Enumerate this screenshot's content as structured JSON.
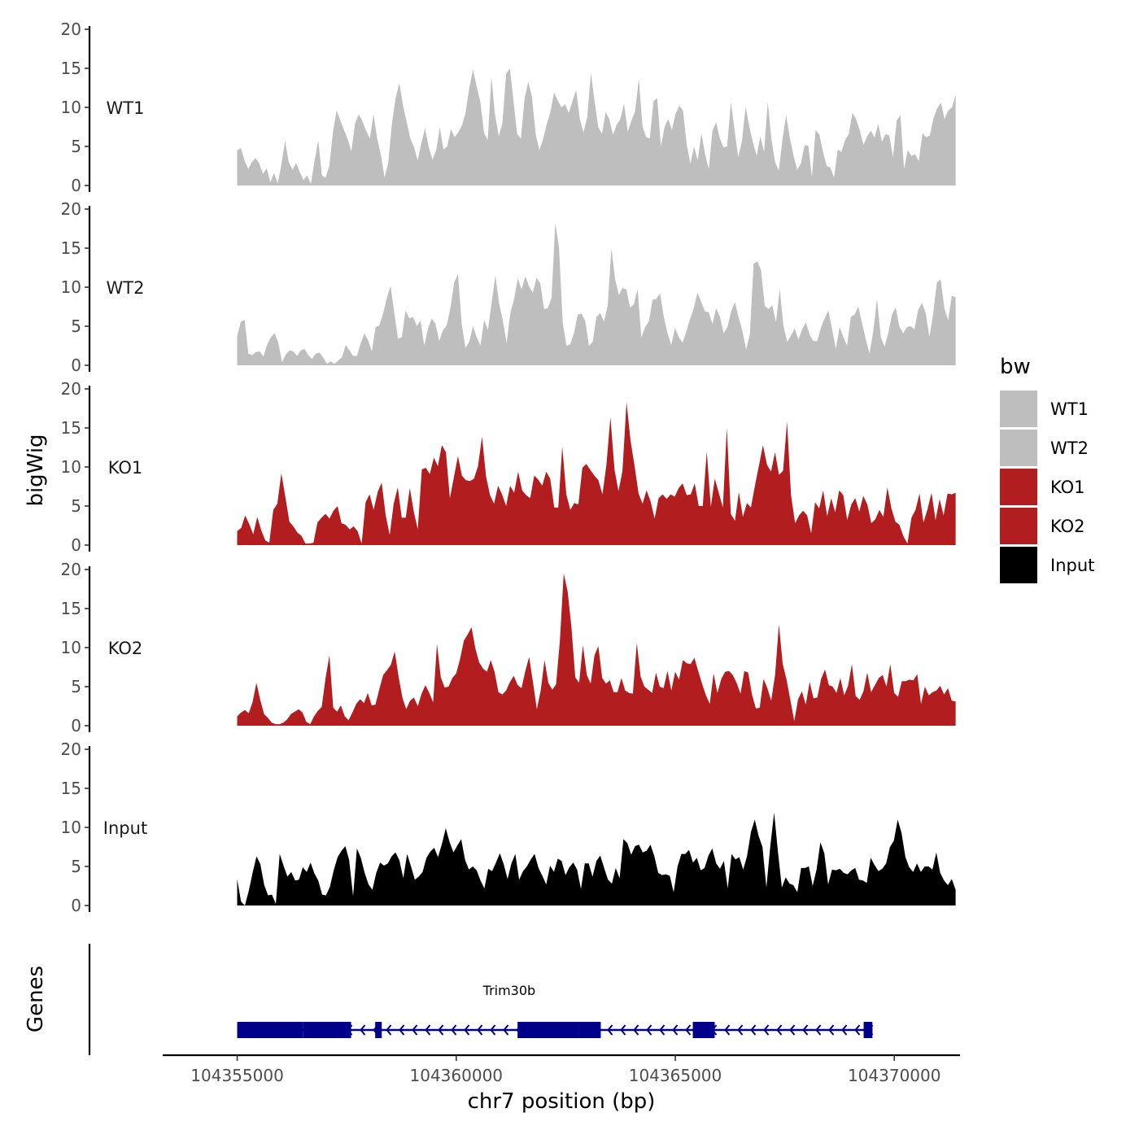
{
  "chart_data": {
    "type": "area",
    "title": "",
    "xlabel": "chr7 position (bp)",
    "ylabel_signal": "bigWig",
    "ylabel_genes": "Genes",
    "xlim": [
      104353300,
      104371500
    ],
    "ylim": [
      0,
      20
    ],
    "x_ticks": [
      104355000,
      104360000,
      104365000,
      104370000
    ],
    "x_tick_labels": [
      "104355000",
      "104360000",
      "104365000",
      "104370000"
    ],
    "y_ticks": [
      0,
      5,
      10,
      15,
      20
    ],
    "y_tick_labels": [
      "0",
      "5",
      "10",
      "15",
      "20"
    ],
    "legend": {
      "title": "bw",
      "position": "right",
      "entries": [
        {
          "label": "WT1",
          "color": "#bebebe"
        },
        {
          "label": "WT2",
          "color": "#bebebe"
        },
        {
          "label": "KO1",
          "color": "#b21d20"
        },
        {
          "label": "KO2",
          "color": "#b21d20"
        },
        {
          "label": "Input",
          "color": "#000000"
        }
      ]
    },
    "tracks": [
      {
        "name": "WT1",
        "color": "#bebebe",
        "x_start": 104355000,
        "x_end": 104371400,
        "values": [
          4.5,
          4.8,
          3.2,
          2.1,
          3.0,
          3.5,
          2.8,
          1.5,
          2.2,
          0.4,
          1.6,
          0.3,
          2.7,
          5.7,
          3.0,
          2.0,
          2.9,
          1.7,
          0.7,
          1.3,
          0.2,
          3.1,
          5.8,
          1.3,
          1.0,
          2.5,
          6.9,
          9.6,
          8.3,
          7.1,
          5.9,
          4.4,
          8.0,
          9.1,
          8.2,
          7.0,
          6.0,
          9.1,
          6.0,
          3.9,
          1.0,
          2.9,
          7.9,
          11.2,
          13.1,
          10.3,
          8.1,
          6.0,
          4.9,
          3.2,
          5.5,
          7.3,
          4.9,
          3.3,
          4.5,
          7.4,
          4.6,
          5.0,
          7.2,
          6.2,
          6.8,
          7.7,
          9.3,
          12.5,
          14.8,
          12.7,
          10.7,
          6.7,
          5.8,
          13.9,
          9.0,
          6.3,
          8.0,
          14.3,
          15.0,
          10.8,
          6.6,
          6.0,
          11.1,
          13.3,
          11.4,
          6.6,
          4.5,
          5.9,
          7.8,
          9.4,
          11.9,
          10.9,
          10.0,
          10.4,
          9.3,
          10.8,
          12.2,
          8.5,
          6.8,
          8.8,
          14.4,
          10.8,
          7.5,
          6.6,
          9.4,
          8.5,
          6.5,
          7.8,
          8.5,
          10.5,
          6.9,
          8.3,
          9.5,
          13.7,
          7.6,
          6.2,
          6.0,
          10.8,
          11.2,
          5.0,
          7.5,
          8.5,
          7.1,
          9.2,
          10.2,
          9.6,
          5.3,
          2.8,
          5.0,
          3.2,
          6.7,
          4.0,
          2.1,
          7.0,
          8.1,
          6.0,
          4.9,
          5.0,
          10.7,
          7.1,
          3.6,
          5.7,
          10.1,
          7.5,
          5.5,
          3.8,
          6.3,
          4.3,
          10.7,
          5.9,
          3.0,
          1.9,
          5.9,
          9.0,
          6.1,
          3.8,
          2.0,
          2.8,
          5.1,
          5.1,
          1.1,
          7.1,
          6.5,
          4.3,
          2.5,
          2.3,
          1.0,
          4.6,
          4.3,
          5.8,
          6.6,
          9.3,
          8.5,
          7.0,
          5.2,
          6.3,
          7.0,
          6.1,
          7.9,
          5.6,
          6.6,
          6.4,
          3.6,
          8.3,
          9.0,
          2.1,
          4.5,
          3.8,
          4.0,
          3.1,
          6.7,
          6.2,
          6.4,
          8.6,
          9.9,
          10.6,
          8.5,
          9.6,
          10.0,
          11.6
        ]
      },
      {
        "name": "WT2",
        "color": "#bebebe",
        "x_start": 104355000,
        "x_end": 104371400,
        "values": [
          3.7,
          5.6,
          5.8,
          1.5,
          1.3,
          1.7,
          1.8,
          1.1,
          2.6,
          3.6,
          4.1,
          2.9,
          0.4,
          1.4,
          1.9,
          1.8,
          1.2,
          1.9,
          2.1,
          1.3,
          0.8,
          1.5,
          1.6,
          1.0,
          0.2,
          0.5,
          0.2,
          0.6,
          1.0,
          2.6,
          1.9,
          1.2,
          1.2,
          2.8,
          4.1,
          3.2,
          1.8,
          4.9,
          5.1,
          6.6,
          8.6,
          10.2,
          6.6,
          3.4,
          3.6,
          7.0,
          6.0,
          6.2,
          5.0,
          5.7,
          2.5,
          4.7,
          6.0,
          5.3,
          3.1,
          4.5,
          5.1,
          7.4,
          10.6,
          11.7,
          5.3,
          2.2,
          3.0,
          5.0,
          3.6,
          2.5,
          5.8,
          4.5,
          8.0,
          11.5,
          7.9,
          5.7,
          2.8,
          6.7,
          8.5,
          11.1,
          9.7,
          11.4,
          10.1,
          9.3,
          11.2,
          10.5,
          7.2,
          7.3,
          8.6,
          18.2,
          15.1,
          5.4,
          2.5,
          2.7,
          4.1,
          6.5,
          6.6,
          5.7,
          2.5,
          3.0,
          6.2,
          6.7,
          5.6,
          7.6,
          15.0,
          11.0,
          9.0,
          9.9,
          9.7,
          7.4,
          7.8,
          9.8,
          3.5,
          4.9,
          5.6,
          8.4,
          8.5,
          9.2,
          6.2,
          4.1,
          2.6,
          4.8,
          3.6,
          2.9,
          4.3,
          5.9,
          7.3,
          9.3,
          8.1,
          6.9,
          6.8,
          5.3,
          7.3,
          6.2,
          4.1,
          4.9,
          6.9,
          8.1,
          6.1,
          4.4,
          2.0,
          4.0,
          13.0,
          13.3,
          12.2,
          7.6,
          7.2,
          7.7,
          5.5,
          9.8,
          5.0,
          3.0,
          3.8,
          4.7,
          3.3,
          4.6,
          5.5,
          3.9,
          3.1,
          3.1,
          4.8,
          6.0,
          7.0,
          4.6,
          2.1,
          4.9,
          3.6,
          2.5,
          6.2,
          6.5,
          7.5,
          5.4,
          3.3,
          1.5,
          4.4,
          8.5,
          3.6,
          2.4,
          4.1,
          6.5,
          7.4,
          4.9,
          4.1,
          4.9,
          5.0,
          4.6,
          7.1,
          8.0,
          6.7,
          3.6,
          6.6,
          10.6,
          11.0,
          7.3,
          5.8,
          8.9,
          8.7
        ]
      },
      {
        "name": "KO1",
        "color": "#b21d20",
        "x_start": 104355000,
        "x_end": 104371400,
        "values": [
          1.8,
          2.2,
          3.8,
          2.7,
          1.4,
          3.6,
          1.9,
          0.6,
          0.3,
          4.5,
          5.3,
          9.2,
          6.2,
          3.0,
          2.4,
          1.6,
          1.2,
          0.2,
          0.2,
          0.3,
          2.9,
          3.5,
          4.0,
          3.4,
          4.4,
          5.0,
          2.8,
          2.6,
          2.0,
          2.4,
          1.8,
          0.2,
          5.5,
          6.5,
          4.5,
          6.8,
          8.0,
          3.8,
          1.3,
          5.3,
          7.4,
          3.5,
          3.5,
          7.3,
          4.3,
          2.0,
          9.7,
          9.9,
          9.1,
          11.2,
          10.1,
          12.8,
          11.9,
          6.0,
          8.7,
          11.4,
          8.9,
          8.3,
          8.2,
          8.5,
          10.1,
          13.9,
          8.8,
          6.4,
          5.3,
          7.6,
          6.5,
          5.0,
          7.6,
          6.7,
          9.4,
          7.0,
          6.4,
          6.0,
          8.9,
          8.4,
          7.6,
          9.4,
          8.5,
          4.8,
          4.8,
          12.6,
          6.5,
          4.5,
          5.4,
          5.2,
          9.9,
          10.4,
          9.6,
          8.9,
          8.3,
          6.5,
          10.3,
          16.4,
          9.7,
          6.9,
          9.5,
          18.3,
          13.4,
          10.2,
          6.6,
          5.3,
          7.0,
          5.6,
          3.4,
          6.0,
          6.5,
          5.9,
          6.5,
          6.2,
          7.3,
          7.9,
          6.4,
          6.5,
          7.9,
          5.0,
          5.0,
          12.0,
          4.9,
          8.5,
          6.7,
          4.8,
          15.0,
          4.0,
          3.1,
          6.8,
          3.6,
          5.4,
          4.8,
          7.6,
          10.2,
          12.8,
          10.3,
          9.4,
          11.9,
          9.0,
          9.5,
          15.8,
          6.4,
          2.8,
          3.8,
          4.4,
          3.8,
          1.5,
          5.5,
          4.7,
          7.0,
          3.7,
          6.0,
          4.2,
          7.0,
          6.4,
          3.2,
          5.2,
          6.0,
          4.3,
          6.3,
          5.2,
          2.8,
          3.3,
          4.5,
          3.6,
          7.4,
          4.7,
          3.0,
          2.6,
          1.1,
          0.2,
          3.5,
          4.5,
          6.6,
          2.9,
          4.6,
          6.7,
          3.2,
          5.9,
          3.8,
          6.6,
          6.5,
          6.7
        ]
      },
      {
        "name": "KO2",
        "color": "#b21d20",
        "x_start": 104355000,
        "x_end": 104371400,
        "values": [
          1.2,
          1.7,
          2.0,
          1.6,
          3.0,
          5.5,
          3.3,
          1.5,
          1.0,
          0.4,
          0.2,
          0.2,
          0.4,
          0.8,
          1.5,
          1.8,
          2.1,
          1.7,
          0.5,
          0.2,
          1.2,
          1.9,
          2.4,
          6.1,
          9.0,
          2.3,
          1.8,
          2.6,
          1.2,
          0.7,
          1.7,
          2.8,
          3.4,
          2.9,
          4.2,
          2.6,
          2.7,
          4.7,
          6.5,
          7.1,
          7.8,
          9.5,
          6.3,
          3.6,
          2.1,
          3.2,
          3.6,
          2.5,
          4.1,
          5.2,
          4.2,
          3.0,
          10.5,
          6.2,
          4.9,
          5.0,
          6.1,
          6.7,
          8.5,
          10.9,
          11.7,
          12.6,
          9.9,
          8.1,
          7.3,
          6.9,
          8.4,
          6.9,
          4.3,
          4.0,
          4.5,
          5.6,
          6.4,
          5.2,
          4.8,
          7.0,
          8.8,
          5.5,
          2.1,
          4.5,
          8.4,
          5.5,
          4.6,
          5.3,
          10.9,
          19.5,
          17.2,
          12.6,
          6.2,
          5.5,
          10.3,
          6.5,
          5.4,
          9.0,
          10.2,
          6.1,
          5.4,
          5.8,
          4.3,
          4.3,
          6.1,
          4.5,
          4.2,
          4.1,
          10.6,
          6.3,
          5.0,
          4.6,
          4.2,
          6.8,
          5.0,
          4.8,
          7.0,
          4.5,
          6.9,
          5.9,
          8.4,
          8.0,
          7.9,
          8.7,
          7.0,
          5.4,
          3.9,
          2.8,
          6.7,
          4.2,
          6.0,
          6.9,
          7.0,
          6.5,
          5.5,
          4.1,
          7.0,
          6.8,
          4.0,
          2.2,
          2.3,
          6.0,
          4.8,
          3.2,
          6.5,
          13.0,
          7.9,
          5.9,
          3.2,
          0.6,
          3.4,
          4.4,
          2.7,
          5.6,
          3.5,
          3.6,
          6.0,
          7.2,
          5.2,
          5.0,
          4.2,
          6.1,
          3.9,
          5.1,
          7.9,
          3.8,
          3.3,
          4.4,
          6.8,
          4.3,
          5.2,
          6.1,
          6.5,
          5.0,
          7.9,
          4.2,
          3.7,
          5.7,
          5.7,
          5.9,
          5.8,
          6.6,
          2.8,
          5.0,
          3.9,
          4.3,
          4.5,
          5.1,
          4.0,
          4.8,
          3.2,
          3.1
        ]
      },
      {
        "name": "Input",
        "color": "#000000",
        "x_start": 104355000,
        "x_end": 104371400,
        "values": [
          3.4,
          0.5,
          0.0,
          1.9,
          4.2,
          6.3,
          5.3,
          2.6,
          1.3,
          1.4,
          0.2,
          6.6,
          5.1,
          3.7,
          4.3,
          3.2,
          3.3,
          4.9,
          4.3,
          5.5,
          4.1,
          3.2,
          1.4,
          1.3,
          2.4,
          4.5,
          6.2,
          7.0,
          7.6,
          5.8,
          1.2,
          7.3,
          6.1,
          4.2,
          2.7,
          2.0,
          4.2,
          5.5,
          5.1,
          5.4,
          6.3,
          6.8,
          5.8,
          3.5,
          6.6,
          5.0,
          3.3,
          3.7,
          4.3,
          6.1,
          6.9,
          7.4,
          6.2,
          7.9,
          9.9,
          8.1,
          6.8,
          7.7,
          8.5,
          5.8,
          4.6,
          5.0,
          4.5,
          3.2,
          2.2,
          4.7,
          4.4,
          5.5,
          6.7,
          5.3,
          3.4,
          5.4,
          6.6,
          3.3,
          4.4,
          5.0,
          5.9,
          6.6,
          4.8,
          3.8,
          2.7,
          5.1,
          4.3,
          6.0,
          5.7,
          3.9,
          4.9,
          5.5,
          4.6,
          2.1,
          5.4,
          5.4,
          3.7,
          5.7,
          6.4,
          4.8,
          3.3,
          2.8,
          4.8,
          3.5,
          8.5,
          8.0,
          6.5,
          7.6,
          7.8,
          6.8,
          7.0,
          7.8,
          6.3,
          4.2,
          3.9,
          4.0,
          3.8,
          1.7,
          5.0,
          6.6,
          6.6,
          7.1,
          5.5,
          6.1,
          4.5,
          4.8,
          6.4,
          7.3,
          5.4,
          4.7,
          5.7,
          2.2,
          6.6,
          5.9,
          6.2,
          4.6,
          6.3,
          9.4,
          11.0,
          8.9,
          7.5,
          2.3,
          7.5,
          11.9,
          6.9,
          2.3,
          3.6,
          2.8,
          2.6,
          1.7,
          4.8,
          4.8,
          5.0,
          2.5,
          4.6,
          8.1,
          6.7,
          2.7,
          4.6,
          4.5,
          4.7,
          4.2,
          4.0,
          4.5,
          4.8,
          3.3,
          3.2,
          2.9,
          6.1,
          5.2,
          4.4,
          4.7,
          5.4,
          7.5,
          8.3,
          11.0,
          9.3,
          6.2,
          4.9,
          4.3,
          5.4,
          4.3,
          5.0,
          5.0,
          4.6,
          6.8,
          4.2,
          3.2,
          2.6,
          3.4,
          2.0
        ]
      }
    ],
    "genes": [
      {
        "name": "Trim30b",
        "strand": "-",
        "color": "#00008b",
        "start": 104355000,
        "end": 104369500,
        "exons": [
          [
            104355000,
            104356500,
            "cds"
          ],
          [
            104356500,
            104357600,
            "cds"
          ],
          [
            104358150,
            104358300,
            "cds"
          ],
          [
            104361400,
            104362800,
            "cds"
          ],
          [
            104362800,
            104363300,
            "cds"
          ],
          [
            104365400,
            104365900,
            "cds"
          ],
          [
            104369300,
            104369500,
            "cds"
          ]
        ],
        "utrs": [
          [
            104355000,
            104355050
          ],
          [
            104369450,
            104369500
          ]
        ]
      }
    ]
  }
}
